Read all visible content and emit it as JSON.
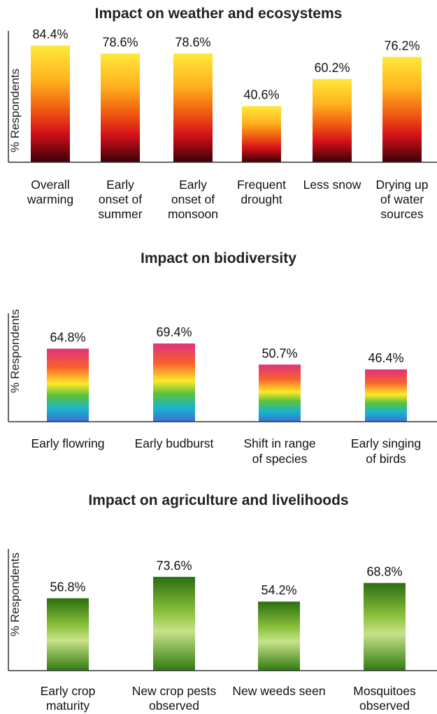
{
  "chart_data": [
    {
      "type": "bar",
      "title": "Impact on weather and ecosystems",
      "ylabel": "% Respondents",
      "xlabel": "",
      "categories": [
        "Overall warming",
        "Early onset of summer",
        "Early onset of monsoon",
        "Frequent drought",
        "Less snow",
        "Drying up of water sources"
      ],
      "values": [
        84.4,
        78.6,
        78.6,
        40.6,
        60.2,
        76.2
      ],
      "value_labels": [
        "84.4%",
        "78.6%",
        "78.6%",
        "40.6%",
        "60.2%",
        "76.2%"
      ],
      "ylim": [
        0,
        100
      ],
      "grid": false,
      "fill": "gradient yellow-orange-red-dark red",
      "colors": [
        "#ffe83a",
        "#ffb21e",
        "#f05a10",
        "#d4101a",
        "#3b0006"
      ]
    },
    {
      "type": "bar",
      "title": "Impact on biodiversity",
      "ylabel": "% Respondents",
      "xlabel": "",
      "categories": [
        "Early flowring",
        "Early budburst",
        "Shift in range of species",
        "Early singing of birds"
      ],
      "values": [
        64.8,
        69.4,
        50.7,
        46.4
      ],
      "value_labels": [
        "64.8%",
        "69.4%",
        "50.7%",
        "46.4%"
      ],
      "ylim": [
        0,
        100
      ],
      "grid": false,
      "fill": "rainbow gradient",
      "colors": [
        "#e0327e",
        "#f7602e",
        "#ffe82a",
        "#5cc23a",
        "#18b4d0",
        "#3f6fd0"
      ]
    },
    {
      "type": "bar",
      "title": "Impact on agriculture and livelihoods",
      "ylabel": "% Respondents",
      "xlabel": "",
      "categories": [
        "Early crop maturity",
        "New crop pests observed",
        "New weeds seen",
        "Mosquitoes observed"
      ],
      "values": [
        56.8,
        73.6,
        54.2,
        68.8
      ],
      "value_labels": [
        "56.8%",
        "73.6%",
        "54.2%",
        "68.8%"
      ],
      "ylim": [
        0,
        100
      ],
      "grid": false,
      "fill": "green gradient",
      "colors": [
        "#2c6e10",
        "#8cc23c",
        "#c8e28a",
        "#2f7a10"
      ]
    }
  ]
}
